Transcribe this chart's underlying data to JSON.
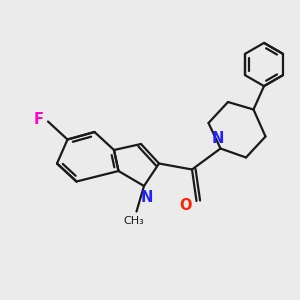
{
  "background_color": "#ebebeb",
  "bond_color": "#1a1a1a",
  "N_color": "#2222ff",
  "O_color": "#ff2200",
  "F_color": "#ff00cc",
  "line_width": 1.6,
  "figsize": [
    3.0,
    3.0
  ],
  "dpi": 100,
  "xlim": [
    0,
    10
  ],
  "ylim": [
    0,
    10
  ]
}
